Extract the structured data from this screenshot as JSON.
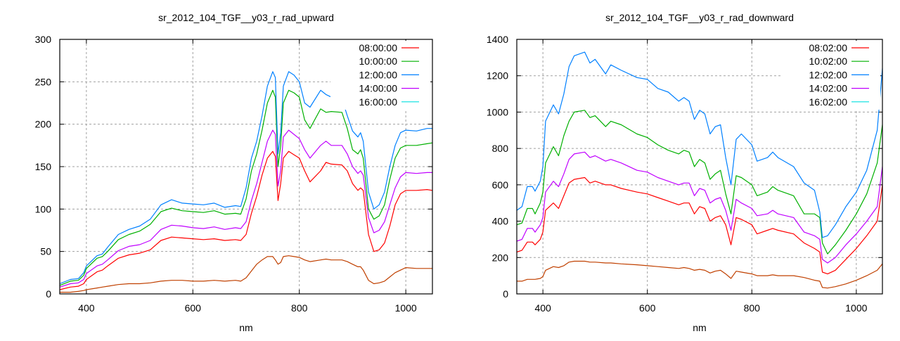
{
  "chart_data": [
    {
      "type": "line",
      "title": "sr_2012_104_TGF__y03_r_rad_upward",
      "xlabel": "nm",
      "ylabel": "",
      "xlim": [
        350,
        1050
      ],
      "ylim": [
        0,
        300
      ],
      "xticks": [
        400,
        600,
        800,
        1000
      ],
      "yticks": [
        0,
        50,
        100,
        150,
        200,
        250,
        300
      ],
      "grid": true,
      "legend_position": "top-right",
      "x": [
        350,
        370,
        385,
        395,
        400,
        420,
        430,
        440,
        460,
        480,
        500,
        520,
        540,
        560,
        580,
        600,
        620,
        640,
        660,
        680,
        690,
        700,
        710,
        720,
        730,
        740,
        750,
        755,
        760,
        765,
        770,
        780,
        790,
        800,
        810,
        820,
        840,
        850,
        860,
        880,
        890,
        900,
        910,
        915,
        920,
        930,
        940,
        950,
        960,
        970,
        980,
        990,
        1000,
        1020,
        1040,
        1050
      ],
      "series": [
        {
          "name": "08:00:00",
          "color": "#ff0000",
          "legend_color": "#ff0000",
          "values": [
            5,
            8,
            9,
            12,
            17,
            26,
            28,
            33,
            42,
            46,
            48,
            52,
            63,
            67,
            66,
            65,
            64,
            65,
            63,
            64,
            63,
            70,
            95,
            115,
            140,
            160,
            168,
            162,
            110,
            130,
            160,
            168,
            164,
            160,
            145,
            132,
            145,
            155,
            153,
            152,
            145,
            130,
            122,
            125,
            122,
            70,
            50,
            52,
            60,
            80,
            105,
            118,
            122,
            122,
            123,
            122
          ]
        },
        {
          "name": "10:00:00",
          "color": "#00b000",
          "legend_color": "#00b000",
          "values": [
            10,
            15,
            16,
            22,
            30,
            42,
            44,
            50,
            64,
            70,
            74,
            82,
            97,
            101,
            98,
            97,
            96,
            98,
            94,
            95,
            94,
            112,
            145,
            165,
            193,
            225,
            240,
            232,
            150,
            175,
            225,
            240,
            237,
            232,
            205,
            195,
            218,
            214,
            215,
            214,
            195,
            170,
            165,
            170,
            160,
            100,
            88,
            92,
            105,
            135,
            160,
            172,
            175,
            175,
            177,
            178
          ]
        },
        {
          "name": "12:00:00",
          "color": "#0080ff",
          "legend_color": "#0080ff",
          "values": [
            12,
            17,
            18,
            25,
            33,
            45,
            47,
            55,
            70,
            76,
            80,
            88,
            105,
            111,
            107,
            106,
            105,
            107,
            102,
            104,
            103,
            125,
            160,
            180,
            210,
            245,
            262,
            255,
            165,
            190,
            245,
            262,
            258,
            250,
            225,
            220,
            240,
            235,
            232,
            230,
            210,
            192,
            185,
            190,
            180,
            120,
            100,
            105,
            120,
            150,
            175,
            190,
            193,
            192,
            195,
            195
          ]
        },
        {
          "name": "14:00:00",
          "color": "#c000ff",
          "legend_color": "#c000ff",
          "values": [
            8,
            12,
            13,
            17,
            24,
            33,
            35,
            40,
            51,
            56,
            58,
            63,
            76,
            81,
            80,
            78,
            77,
            79,
            76,
            78,
            77,
            85,
            110,
            130,
            155,
            180,
            193,
            188,
            127,
            145,
            185,
            193,
            188,
            183,
            170,
            160,
            175,
            180,
            175,
            175,
            165,
            150,
            142,
            145,
            140,
            90,
            72,
            75,
            85,
            105,
            125,
            138,
            143,
            142,
            143,
            143
          ]
        },
        {
          "name": "16:00:00",
          "color": "#c04000",
          "legend_color": "#00e0e0",
          "values": [
            2,
            2,
            3,
            4,
            5,
            7,
            8,
            9,
            11,
            12,
            12,
            13,
            15,
            16,
            16,
            15,
            15,
            16,
            15,
            16,
            15,
            19,
            27,
            35,
            40,
            44,
            44,
            40,
            35,
            37,
            44,
            45,
            44,
            43,
            40,
            38,
            40,
            41,
            40,
            40,
            38,
            35,
            32,
            32,
            28,
            16,
            12,
            13,
            15,
            20,
            25,
            28,
            31,
            30,
            30,
            30
          ]
        }
      ]
    },
    {
      "type": "line",
      "title": "sr_2012_104_TGF__y03_r_rad_downward",
      "xlabel": "nm",
      "ylabel": "",
      "xlim": [
        350,
        1050
      ],
      "ylim": [
        0,
        1400
      ],
      "xticks": [
        400,
        600,
        800,
        1000
      ],
      "yticks": [
        0,
        200,
        400,
        600,
        800,
        1000,
        1200,
        1400
      ],
      "grid": true,
      "legend_position": "top-right",
      "x": [
        350,
        360,
        370,
        380,
        385,
        395,
        400,
        405,
        420,
        430,
        440,
        450,
        460,
        480,
        490,
        500,
        520,
        530,
        550,
        580,
        600,
        620,
        640,
        660,
        670,
        680,
        690,
        700,
        710,
        720,
        730,
        740,
        750,
        760,
        770,
        780,
        800,
        810,
        830,
        840,
        850,
        880,
        900,
        920,
        930,
        935,
        945,
        960,
        980,
        1000,
        1020,
        1040,
        1050
      ],
      "series": [
        {
          "name": "08:02:00",
          "color": "#ff0000",
          "legend_color": "#ff0000",
          "values": [
            230,
            240,
            285,
            285,
            270,
            300,
            340,
            460,
            500,
            470,
            540,
            610,
            630,
            640,
            610,
            620,
            600,
            600,
            580,
            560,
            550,
            530,
            510,
            490,
            500,
            500,
            440,
            480,
            470,
            400,
            420,
            430,
            380,
            270,
            420,
            410,
            380,
            330,
            350,
            360,
            350,
            330,
            280,
            250,
            230,
            120,
            110,
            130,
            190,
            250,
            320,
            400,
            600
          ]
        },
        {
          "name": "10:02:00",
          "color": "#00b000",
          "legend_color": "#00b000",
          "values": [
            380,
            390,
            470,
            470,
            440,
            500,
            560,
            720,
            810,
            760,
            870,
            950,
            1000,
            1010,
            970,
            980,
            920,
            950,
            930,
            880,
            860,
            820,
            790,
            770,
            790,
            780,
            700,
            740,
            720,
            630,
            660,
            680,
            550,
            440,
            650,
            640,
            600,
            540,
            560,
            590,
            570,
            540,
            440,
            440,
            420,
            280,
            220,
            270,
            350,
            440,
            550,
            720,
            930
          ]
        },
        {
          "name": "12:02:00",
          "color": "#0080ff",
          "legend_color": "#0080ff",
          "values": [
            460,
            480,
            590,
            590,
            565,
            620,
            700,
            950,
            1040,
            990,
            1100,
            1250,
            1310,
            1330,
            1270,
            1290,
            1210,
            1260,
            1230,
            1190,
            1180,
            1130,
            1110,
            1060,
            1080,
            1060,
            960,
            1010,
            990,
            880,
            920,
            930,
            750,
            600,
            850,
            880,
            820,
            730,
            750,
            780,
            750,
            700,
            610,
            570,
            450,
            310,
            320,
            380,
            480,
            560,
            680,
            900,
            1240
          ]
        },
        {
          "name": "14:02:00",
          "color": "#c000ff",
          "legend_color": "#c000ff",
          "values": [
            290,
            300,
            360,
            360,
            340,
            380,
            420,
            560,
            620,
            590,
            660,
            740,
            770,
            780,
            750,
            760,
            730,
            740,
            720,
            680,
            670,
            640,
            620,
            600,
            610,
            610,
            540,
            580,
            570,
            500,
            520,
            530,
            460,
            350,
            520,
            500,
            470,
            430,
            440,
            460,
            440,
            420,
            340,
            320,
            300,
            190,
            170,
            200,
            270,
            330,
            400,
            480,
            700
          ]
        },
        {
          "name": "16:02:00",
          "color": "#c04000",
          "legend_color": "#00e0e0",
          "values": [
            70,
            70,
            80,
            80,
            80,
            85,
            95,
            130,
            150,
            145,
            155,
            175,
            180,
            180,
            175,
            175,
            170,
            170,
            165,
            160,
            155,
            150,
            145,
            140,
            145,
            140,
            130,
            135,
            130,
            115,
            125,
            130,
            110,
            85,
            125,
            120,
            110,
            100,
            100,
            105,
            100,
            100,
            90,
            75,
            70,
            35,
            32,
            40,
            55,
            75,
            100,
            130,
            165
          ]
        }
      ]
    }
  ]
}
